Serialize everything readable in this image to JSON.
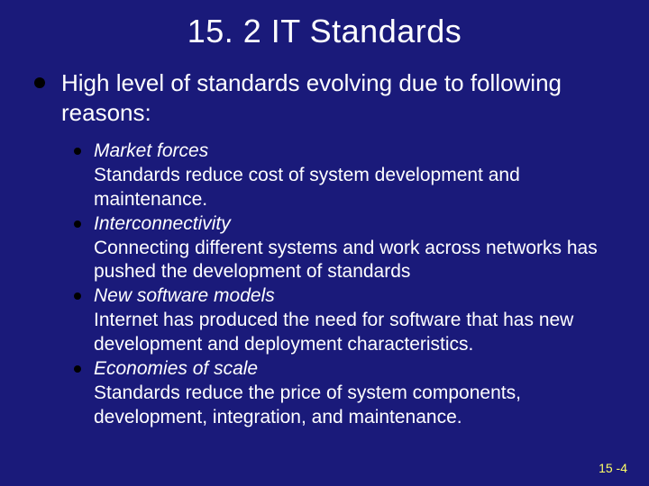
{
  "colors": {
    "background": "#1a1a7a",
    "text": "#ffffff",
    "bullet": "#000000",
    "pagenum": "#ffff66"
  },
  "typography": {
    "title_fontsize": 36,
    "main_fontsize": 26,
    "sub_fontsize": 21,
    "pagenum_fontsize": 14,
    "font_family": "Arial"
  },
  "title": "15. 2 IT Standards",
  "main": "High level of standards evolving due to following reasons:",
  "items": [
    {
      "title": "Market forces",
      "desc": "Standards reduce cost of system development and maintenance."
    },
    {
      "title": "Interconnectivity",
      "desc": "Connecting different systems and work across networks has pushed the development of standards"
    },
    {
      "title": "New software models",
      "desc": "Internet has produced the need for software that has new development and deployment characteristics."
    },
    {
      "title": "Economies of scale",
      "desc": "Standards reduce the price of system components, development, integration, and maintenance."
    }
  ],
  "pagenum": "15 -4"
}
